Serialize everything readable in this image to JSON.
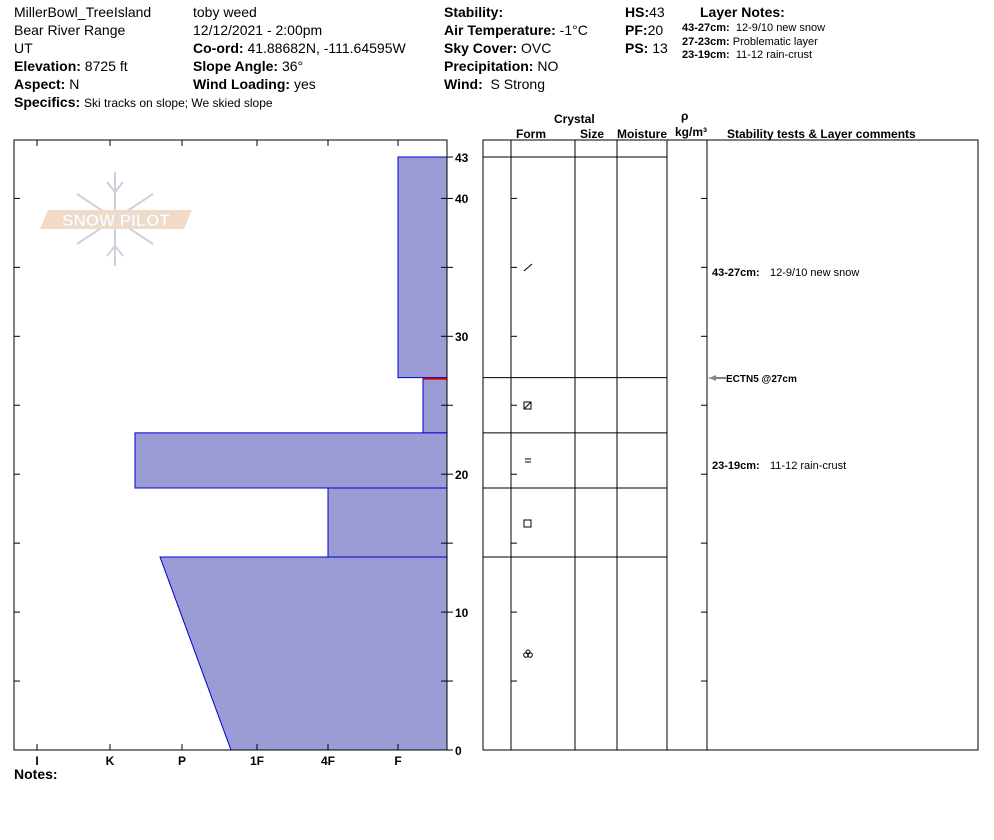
{
  "header": {
    "location": "MillerBowl_TreeIsland",
    "range": "Bear River Range",
    "state": "UT",
    "elevation_label": "Elevation:",
    "elevation": "8725 ft",
    "aspect_label": "Aspect:",
    "aspect": "N",
    "observer": "toby weed",
    "datetime": "12/12/2021 - 2:00pm",
    "coord_label": "Co-ord:",
    "coord": "41.88682N, -111.64595W",
    "slope_label": "Slope Angle:",
    "slope": "36°",
    "wind_loading_label": "Wind Loading:",
    "wind_loading": "yes",
    "specifics_label": "Specifics:",
    "specifics": "Ski tracks on slope; We skied slope",
    "stability_label": "Stability:",
    "air_temp_label": "Air Temperature:",
    "air_temp": "-1°C",
    "sky_label": "Sky Cover:",
    "sky": "OVC",
    "precip_label": "Precipitation:",
    "precip": "NO",
    "wind_label": "Wind:",
    "wind": "S Strong",
    "hs_label": "HS:",
    "hs": "43",
    "pf_label": "PF:",
    "pf": "20",
    "ps_label": "PS:",
    "ps": "13",
    "layer_notes_title": "Layer Notes:",
    "layer_notes": [
      {
        "range": "43-27cm:",
        "text": "12-9/10 new snow"
      },
      {
        "range": "27-23cm:",
        "text": "Problematic layer"
      },
      {
        "range": "23-19cm:",
        "text": "11-12 rain-crust"
      }
    ]
  },
  "columns": {
    "crystal": "Crystal",
    "form": "Form",
    "size": "Size",
    "moisture": "Moisture",
    "rho": "ρ",
    "density_unit": "kg/m³",
    "comments": "Stability tests & Layer comments"
  },
  "logo_text": "SNOW PILOT",
  "hardness_scale": [
    "I",
    "K",
    "P",
    "1F",
    "4F",
    "F"
  ],
  "depth_labels": [
    "43",
    "40",
    "30",
    "20",
    "10",
    "0"
  ],
  "layers": [
    {
      "top": 43,
      "bottom": 27,
      "hardness": "F",
      "form": "slash"
    },
    {
      "top": 27,
      "bottom": 23,
      "hardness": "F-",
      "form": "faceted-rounded"
    },
    {
      "top": 23,
      "bottom": 19,
      "hardness": "K-",
      "form": "crust"
    },
    {
      "top": 19,
      "bottom": 14,
      "hardness": "4F",
      "form": "faceted"
    },
    {
      "top": 14,
      "bottom": 0,
      "hardness_top": "P-",
      "hardness_bottom": "1F+",
      "form": "melt-forms"
    }
  ],
  "comments": [
    {
      "range": "43-27cm:",
      "text": "12-9/10 new snow"
    },
    {
      "test": "ECTN5 @27cm"
    },
    {
      "range": "23-19cm:",
      "text": "11-12 rain-crust"
    }
  ],
  "notes_label": "Notes:",
  "colors": {
    "layer_fill": "#9b9bd6",
    "layer_edge": "#0000cc",
    "weak_layer": "#cc0000"
  }
}
